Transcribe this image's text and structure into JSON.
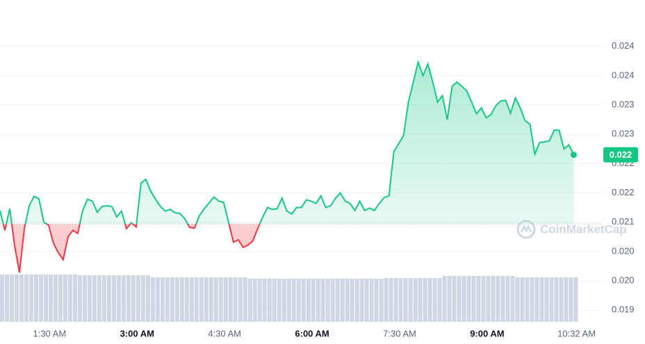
{
  "chart_data": {
    "type": "line",
    "x": [
      39,
      44,
      49,
      54,
      59,
      64,
      69,
      74,
      79,
      84,
      89,
      94,
      99,
      104,
      109,
      114,
      119,
      124,
      129,
      134,
      139,
      144,
      149,
      154,
      159,
      164,
      169,
      174,
      179,
      184,
      189,
      194,
      199,
      204,
      209,
      214,
      219,
      224,
      229,
      234,
      239,
      244,
      249,
      254,
      259,
      264,
      269,
      274,
      279,
      284,
      289,
      294,
      299,
      304,
      309,
      314,
      319,
      324,
      329,
      334,
      339,
      344,
      349,
      354,
      359,
      364,
      369,
      374,
      379,
      384,
      389,
      394,
      399,
      404,
      409,
      414,
      419,
      424,
      429,
      434,
      439,
      444,
      449,
      454,
      459,
      464,
      469,
      474,
      479,
      484,
      489,
      494,
      499,
      504,
      509,
      514,
      519,
      524,
      529,
      534,
      539,
      544,
      549,
      554,
      559,
      564,
      569,
      574,
      579,
      584,
      589,
      594,
      599,
      604,
      609,
      614,
      619,
      624,
      629
    ],
    "values": [
      0.0212,
      0.02086,
      0.02123,
      0.0206,
      0.02014,
      0.02089,
      0.02128,
      0.02144,
      0.0214,
      0.021,
      0.02095,
      0.02064,
      0.02048,
      0.02036,
      0.02075,
      0.02086,
      0.02081,
      0.0212,
      0.02139,
      0.02136,
      0.02117,
      0.02127,
      0.02128,
      0.02127,
      0.02109,
      0.02119,
      0.02089,
      0.02099,
      0.02092,
      0.02167,
      0.02173,
      0.02153,
      0.02139,
      0.02127,
      0.02119,
      0.02122,
      0.02116,
      0.02115,
      0.02106,
      0.02091,
      0.0209,
      0.02111,
      0.02123,
      0.02133,
      0.02143,
      0.02136,
      0.02134,
      0.021,
      0.02066,
      0.0207,
      0.02057,
      0.02061,
      0.02068,
      0.02089,
      0.02108,
      0.02125,
      0.02122,
      0.02123,
      0.02141,
      0.02119,
      0.02114,
      0.02125,
      0.02125,
      0.02138,
      0.02136,
      0.02132,
      0.02145,
      0.02125,
      0.02128,
      0.02141,
      0.0215,
      0.02136,
      0.02132,
      0.0212,
      0.02136,
      0.0212,
      0.02124,
      0.0212,
      0.02132,
      0.02142,
      0.02145,
      0.0222,
      0.02234,
      0.02248,
      0.02305,
      0.02339,
      0.02373,
      0.0235,
      0.0237,
      0.02339,
      0.02305,
      0.02316,
      0.02275,
      0.02332,
      0.02339,
      0.02332,
      0.02324,
      0.02305,
      0.02285,
      0.02295,
      0.02278,
      0.02284,
      0.02299,
      0.02307,
      0.02308,
      0.02286,
      0.02312,
      0.02295,
      0.02273,
      0.02267,
      0.02216,
      0.02236,
      0.02237,
      0.02239,
      0.02257,
      0.02257,
      0.02225,
      0.02232,
      0.02215
    ],
    "volume": [
      68,
      68,
      68,
      68,
      68,
      68,
      68,
      68,
      68,
      68,
      68,
      68,
      68,
      68,
      68,
      68,
      67,
      67,
      67,
      67,
      67,
      67,
      67,
      67,
      67,
      67,
      67,
      67,
      67,
      67,
      67,
      64,
      64,
      64,
      64,
      64,
      64,
      64,
      64,
      64,
      64,
      64,
      64,
      64,
      64,
      64,
      64,
      64,
      64,
      64,
      64,
      62,
      62,
      62,
      62,
      62,
      62,
      62,
      62,
      62,
      62,
      62,
      62,
      62,
      62,
      62,
      62,
      62,
      62,
      62,
      62,
      62,
      62,
      62,
      62,
      62,
      62,
      62,
      62,
      63,
      63,
      63,
      63,
      63,
      63,
      63,
      63,
      63,
      63,
      63,
      63,
      66,
      66,
      66,
      66,
      66,
      66,
      66,
      66,
      66,
      66,
      66,
      66,
      66,
      66,
      66,
      64,
      64,
      64,
      64,
      64,
      64,
      64,
      64,
      64,
      64,
      64,
      64,
      64
    ],
    "volume_ylim": [
      0,
      70
    ],
    "baseline": 0.02097,
    "color_up": "#16c784",
    "color_down": "#ea3943",
    "volume_color": "#cfd6e4",
    "current_price": {
      "value": 0.02215,
      "label": "0.022"
    },
    "watermark": "CoinMarketCap",
    "xlim": [
      39,
      638
    ],
    "xticks": [
      {
        "value": 90,
        "label": "1:30 AM"
      },
      {
        "value": 180,
        "label": "3:00 AM"
      },
      {
        "value": 270,
        "label": "4:30 AM"
      },
      {
        "value": 360,
        "label": "6:00 AM"
      },
      {
        "value": 450,
        "label": "7:30 AM"
      },
      {
        "value": 540,
        "label": "9:00 AM"
      },
      {
        "value": 632,
        "label": "10:32 AM"
      }
    ],
    "ylim": [
      0.01923,
      0.02472
    ],
    "yticks": [
      {
        "value": 0.0195,
        "label": "0.019"
      },
      {
        "value": 0.02,
        "label": "0.020"
      },
      {
        "value": 0.0205,
        "label": "0.020"
      },
      {
        "value": 0.021,
        "label": "0.021"
      },
      {
        "value": 0.0215,
        "label": "0.022"
      },
      {
        "value": 0.022,
        "label": "0.022"
      },
      {
        "value": 0.0225,
        "label": "0.023"
      },
      {
        "value": 0.023,
        "label": "0.023"
      },
      {
        "value": 0.0235,
        "label": "0.024"
      },
      {
        "value": 0.024,
        "label": "0.024"
      }
    ],
    "grid": true
  }
}
